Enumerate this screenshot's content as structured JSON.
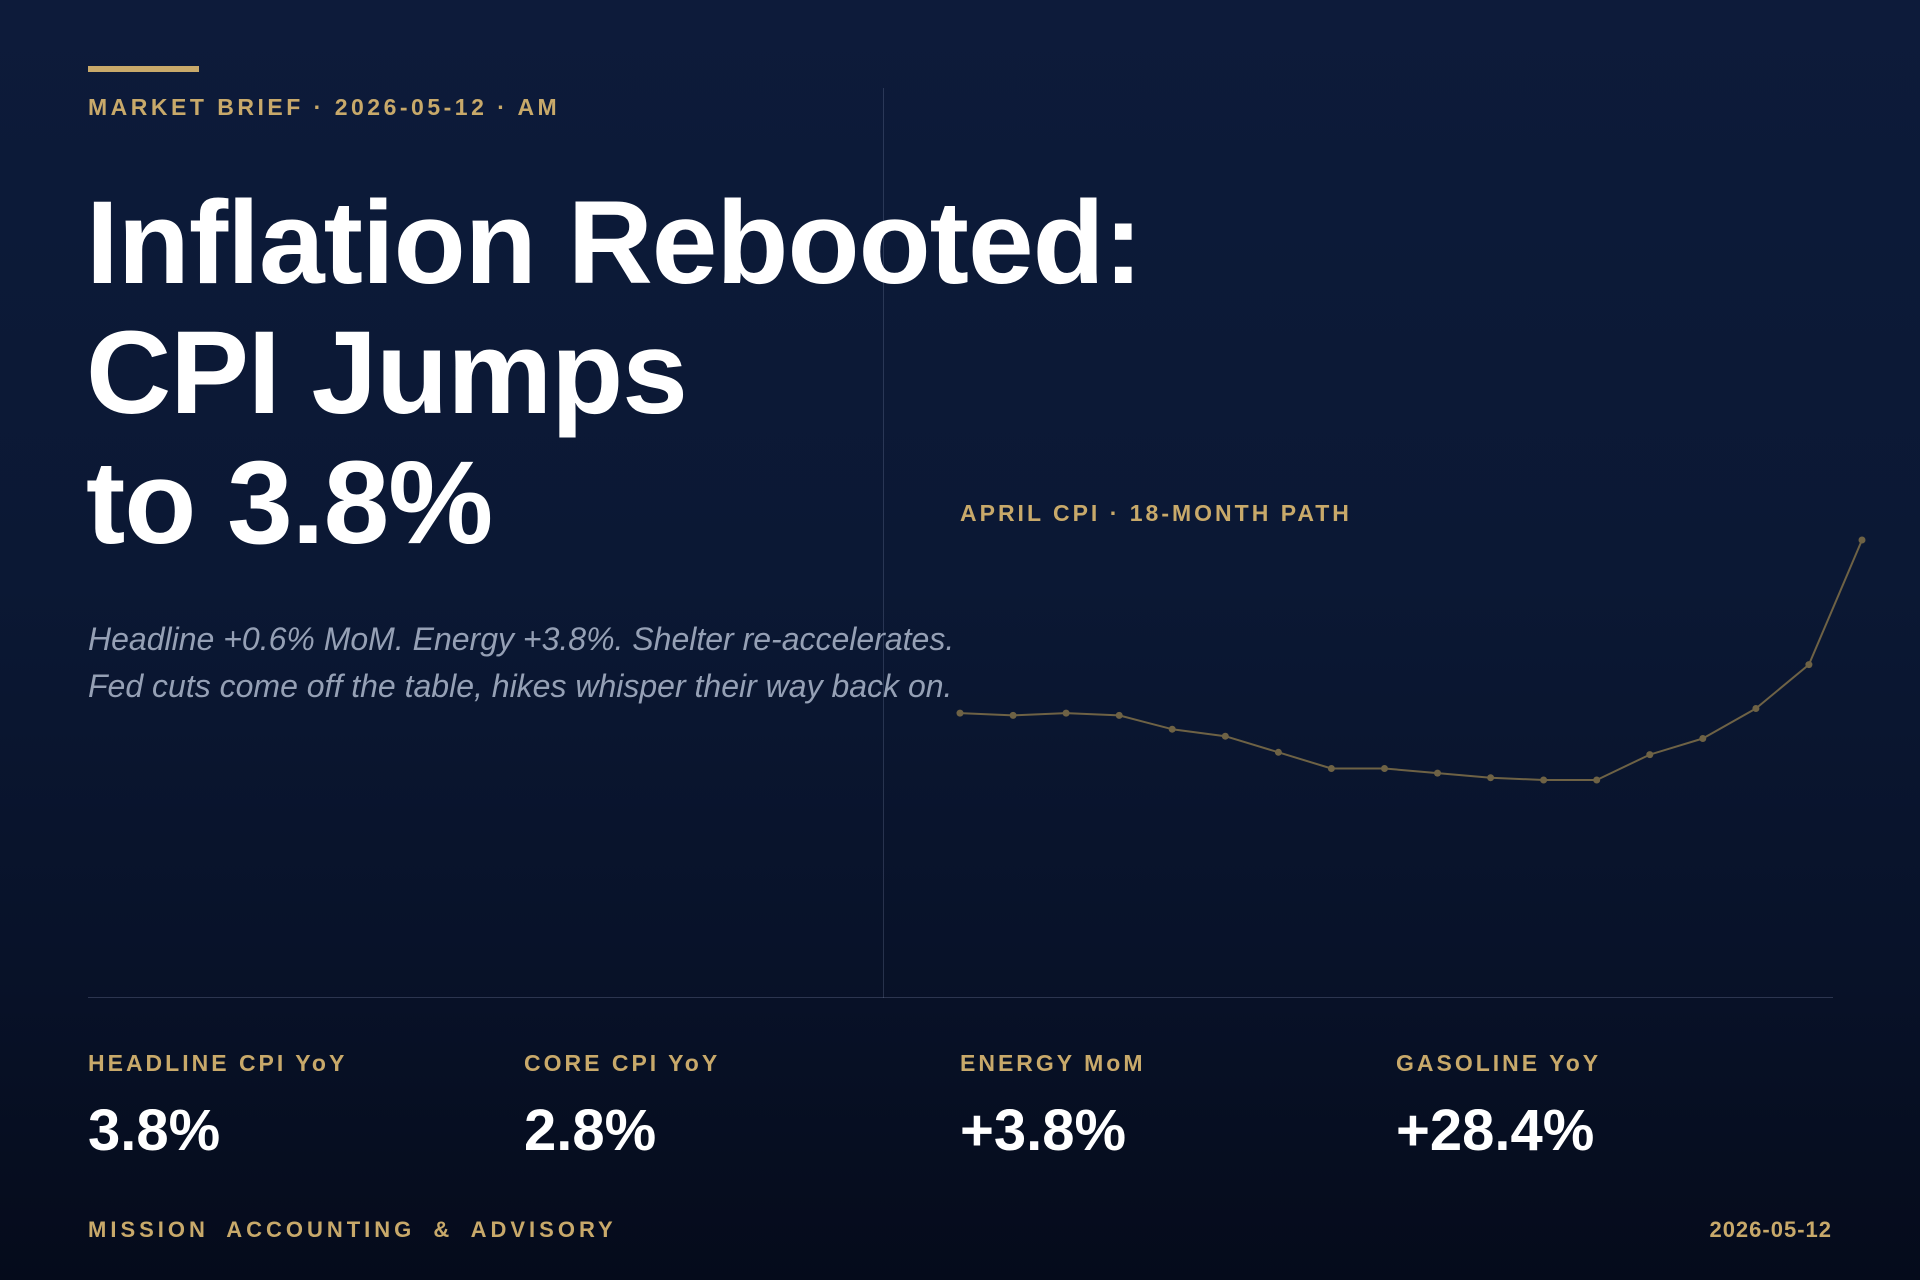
{
  "kicker": "MARKET BRIEF · 2026-05-12 · AM",
  "headline": {
    "line1": "Inflation Rebooted:",
    "line2": "CPI Jumps",
    "line3": "to 3.8%"
  },
  "dek": {
    "line1": "Headline +0.6% MoM. Energy +3.8%. Shelter re-accelerates.",
    "line2": "Fed cuts come off the table, hikes whisper their way back on."
  },
  "chart_label": "APRIL CPI · 18-MONTH PATH",
  "chart_data": {
    "type": "line",
    "title": "APRIL CPI · 18-MONTH PATH",
    "xlabel": "",
    "ylabel": "",
    "grid": false,
    "series": [
      {
        "values": [
          3.05,
          3.04,
          3.05,
          3.04,
          2.98,
          2.95,
          2.88,
          2.81,
          2.81,
          2.79,
          2.77,
          2.76,
          2.76,
          2.87,
          2.94,
          3.07,
          3.26,
          3.8
        ]
      }
    ],
    "color": "#6e6245"
  },
  "stats": [
    {
      "label": "HEADLINE CPI YoY",
      "value": "3.8%"
    },
    {
      "label": "CORE CPI YoY",
      "value": "2.8%"
    },
    {
      "label": "ENERGY MoM",
      "value": "+3.8%"
    },
    {
      "label": "GASOLINE YoY",
      "value": "+28.4%"
    }
  ],
  "footer": {
    "firm": "MISSION ACCOUNTING & ADVISORY",
    "date": "2026-05-12"
  },
  "colors": {
    "accent": "#c8a96a",
    "background_top": "#0d1b3a",
    "background_bottom": "#050b1b",
    "dek_text": "#95a0b5"
  }
}
